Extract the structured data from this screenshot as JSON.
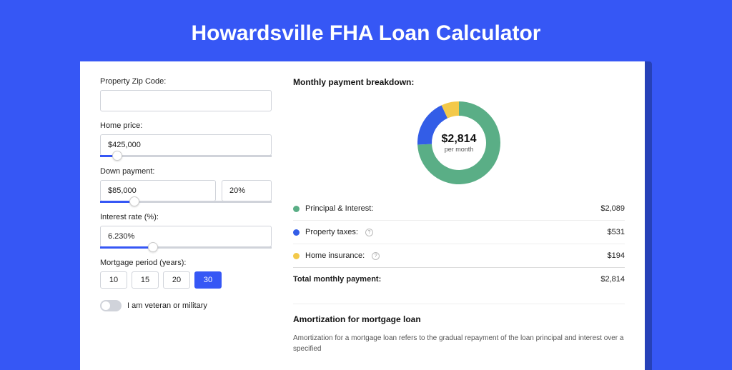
{
  "page": {
    "title": "Howardsville FHA Loan Calculator",
    "background_color": "#3657f5",
    "shadow_color": "#2641b8",
    "card_color": "#ffffff"
  },
  "form": {
    "zip": {
      "label": "Property Zip Code:",
      "value": ""
    },
    "home_price": {
      "label": "Home price:",
      "value": "$425,000",
      "slider_pct": 10
    },
    "down_payment": {
      "label": "Down payment:",
      "amount": "$85,000",
      "percent": "20%",
      "slider_pct": 20
    },
    "interest_rate": {
      "label": "Interest rate (%):",
      "value": "6.230%",
      "slider_pct": 31
    },
    "mortgage_period": {
      "label": "Mortgage period (years):",
      "options": [
        "10",
        "15",
        "20",
        "30"
      ],
      "selected_index": 3
    },
    "veteran": {
      "label": "I am veteran or military",
      "checked": false
    }
  },
  "breakdown": {
    "title": "Monthly payment breakdown:",
    "donut": {
      "amount": "$2,814",
      "sub": "per month",
      "slices": [
        {
          "name": "principal_interest",
          "pct": 74.3,
          "color": "#5aae86"
        },
        {
          "name": "property_taxes",
          "pct": 18.8,
          "color": "#335de7"
        },
        {
          "name": "home_insurance",
          "pct": 6.9,
          "color": "#f3c94a"
        }
      ],
      "ring_width": 20
    },
    "items": [
      {
        "label": "Principal & Interest:",
        "value": "$2,089",
        "color": "#5aae86",
        "info": false
      },
      {
        "label": "Property taxes:",
        "value": "$531",
        "color": "#335de7",
        "info": true
      },
      {
        "label": "Home insurance:",
        "value": "$194",
        "color": "#f3c94a",
        "info": true
      }
    ],
    "total": {
      "label": "Total monthly payment:",
      "value": "$2,814"
    }
  },
  "amortization": {
    "title": "Amortization for mortgage loan",
    "text": "Amortization for a mortgage loan refers to the gradual repayment of the loan principal and interest over a specified"
  }
}
